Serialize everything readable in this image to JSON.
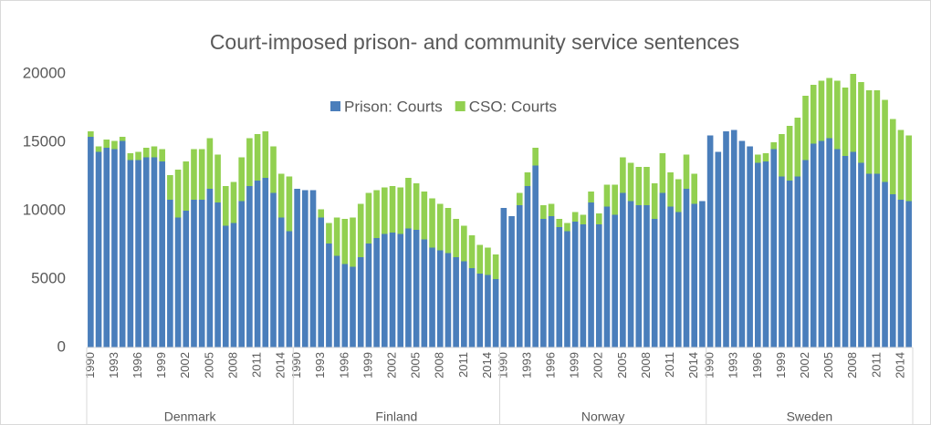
{
  "chart_data": {
    "type": "stacked-bar",
    "title": "Court-imposed prison- and community service sentences",
    "groups": [
      "Denmark",
      "Finland",
      "Norway",
      "Sweden"
    ],
    "categories": [
      "1990",
      null,
      null,
      "1993",
      null,
      null,
      "1996",
      null,
      null,
      "1999",
      null,
      null,
      "2002",
      null,
      null,
      "2005",
      null,
      null,
      "2008",
      null,
      null,
      "2011",
      null,
      null,
      "2014",
      null,
      "1990",
      null,
      null,
      "1993",
      null,
      null,
      "1996",
      null,
      null,
      "1999",
      null,
      null,
      "2002",
      null,
      null,
      "2005",
      null,
      null,
      "2008",
      null,
      null,
      "2011",
      null,
      null,
      "2014",
      null,
      "1990",
      null,
      null,
      "1993",
      null,
      null,
      "1996",
      null,
      null,
      "1999",
      null,
      null,
      "2002",
      null,
      null,
      "2005",
      null,
      null,
      "2008",
      null,
      null,
      "2011",
      null,
      null,
      "2014",
      null,
      "1990",
      null,
      null,
      "1993",
      null,
      null,
      "1996",
      null,
      null,
      "1999",
      null,
      null,
      "2002",
      null,
      null,
      "2005",
      null,
      null,
      "2008",
      null,
      null,
      "2011",
      null,
      null,
      "2014",
      null
    ],
    "series": [
      {
        "name": "Prison: Courts",
        "color": "#4a7ebb",
        "values": [
          15400,
          14300,
          14600,
          14500,
          15100,
          13700,
          13700,
          13900,
          13900,
          13600,
          10800,
          9500,
          10000,
          10800,
          10800,
          11600,
          10600,
          8900,
          9100,
          10700,
          11800,
          12200,
          12400,
          11300,
          9500,
          8500,
          11600,
          11500,
          11500,
          9500,
          7600,
          6700,
          6100,
          5900,
          6600,
          7600,
          8000,
          8300,
          8400,
          8300,
          8700,
          8600,
          7900,
          7300,
          7100,
          6900,
          6600,
          6300,
          5800,
          5400,
          5300,
          5000,
          10200,
          9600,
          10400,
          11800,
          13300,
          9400,
          9600,
          8800,
          8500,
          9200,
          9000,
          10600,
          9000,
          10300,
          9700,
          11300,
          10700,
          10400,
          10400,
          9400,
          11300,
          10300,
          9900,
          11600,
          10500,
          10700,
          15500,
          14300,
          15800,
          15900,
          15100,
          14700,
          13500,
          13600,
          14500,
          12500,
          12200,
          12500,
          13700,
          14900,
          15100,
          15300,
          14500,
          14000,
          14300,
          13500,
          12700,
          12700,
          12100,
          11200,
          10800,
          10700
        ]
      },
      {
        "name": "CSO: Courts",
        "color": "#92d050",
        "values": [
          400,
          400,
          600,
          600,
          300,
          500,
          600,
          700,
          800,
          900,
          1800,
          3500,
          3600,
          3700,
          3700,
          3700,
          3500,
          2900,
          3000,
          3200,
          3500,
          3400,
          3400,
          3400,
          3200,
          4000,
          0,
          0,
          0,
          600,
          1500,
          2800,
          3300,
          3600,
          3900,
          3700,
          3500,
          3400,
          3400,
          3400,
          3700,
          3400,
          3500,
          3600,
          3400,
          3300,
          2800,
          2600,
          2400,
          2100,
          2000,
          1800,
          0,
          0,
          900,
          1000,
          1300,
          1000,
          900,
          600,
          600,
          700,
          700,
          800,
          800,
          1600,
          2200,
          2600,
          2800,
          2800,
          2800,
          2600,
          2900,
          2500,
          2400,
          2500,
          2200,
          0,
          0,
          0,
          0,
          0,
          0,
          0,
          600,
          600,
          500,
          3100,
          4000,
          4300,
          4700,
          4300,
          4400,
          4400,
          5000,
          5000,
          5700,
          5900,
          6100,
          6100,
          6000,
          5500,
          5100,
          4800
        ]
      }
    ],
    "ylim": [
      0,
      20000
    ],
    "yticks": [
      0,
      5000,
      10000,
      15000,
      20000
    ],
    "grid": false
  }
}
